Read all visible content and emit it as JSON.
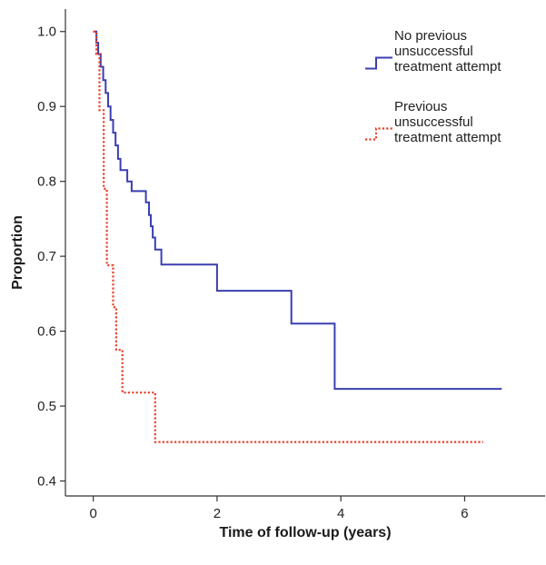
{
  "chart_data": {
    "type": "line",
    "step": true,
    "xlabel": "Time of follow-up (years)",
    "ylabel": "Proportion",
    "xlim": [
      -0.45,
      7.3
    ],
    "ylim": [
      0.38,
      1.03
    ],
    "x_ticks": [
      0,
      2,
      4,
      6
    ],
    "x_tick_labels": [
      "0",
      "2",
      "4",
      "6"
    ],
    "y_ticks": [
      0.4,
      0.5,
      0.6,
      0.7,
      0.8,
      0.9,
      1.0
    ],
    "y_tick_labels": [
      "0.4",
      "0.5",
      "0.6",
      "0.7",
      "0.8",
      "0.9",
      "1.0"
    ],
    "grid": false,
    "legend_position": "top-right",
    "series": [
      {
        "legend_lines": [
          "No previous",
          "unsuccessful",
          "treatment attempt"
        ],
        "color": "#3a3fb0",
        "line_style": "solid",
        "points": [
          [
            0.0,
            1.0
          ],
          [
            0.05,
            0.985
          ],
          [
            0.08,
            0.97
          ],
          [
            0.12,
            0.953
          ],
          [
            0.16,
            0.935
          ],
          [
            0.2,
            0.918
          ],
          [
            0.24,
            0.9
          ],
          [
            0.28,
            0.882
          ],
          [
            0.32,
            0.865
          ],
          [
            0.36,
            0.848
          ],
          [
            0.4,
            0.83
          ],
          [
            0.44,
            0.815
          ],
          [
            0.55,
            0.8
          ],
          [
            0.62,
            0.787
          ],
          [
            0.85,
            0.772
          ],
          [
            0.9,
            0.755
          ],
          [
            0.93,
            0.74
          ],
          [
            0.96,
            0.725
          ],
          [
            1.0,
            0.709
          ],
          [
            1.1,
            0.689
          ],
          [
            2.0,
            0.654
          ],
          [
            3.2,
            0.61
          ],
          [
            3.9,
            0.523
          ],
          [
            6.6,
            0.523
          ]
        ]
      },
      {
        "legend_lines": [
          "Previous",
          "unsuccessful",
          "treatment attempt"
        ],
        "color": "#e8422a",
        "line_style": "dotted",
        "points": [
          [
            0.0,
            1.0
          ],
          [
            0.05,
            0.97
          ],
          [
            0.1,
            0.895
          ],
          [
            0.17,
            0.79
          ],
          [
            0.22,
            0.688
          ],
          [
            0.32,
            0.632
          ],
          [
            0.37,
            0.575
          ],
          [
            0.47,
            0.518
          ],
          [
            1.0,
            0.452
          ],
          [
            6.3,
            0.452
          ]
        ]
      }
    ]
  }
}
